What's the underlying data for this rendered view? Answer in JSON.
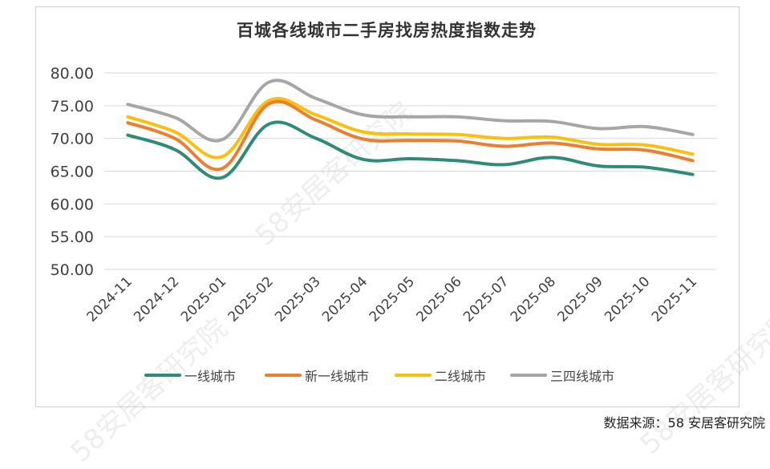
{
  "chart_data": {
    "type": "line",
    "title": "百城各线城市二手房找房热度指数走势",
    "categories": [
      "2024-11",
      "2024-12",
      "2025-01",
      "2025-02",
      "2025-03",
      "2025-04",
      "2025-05",
      "2025-06",
      "2025-07",
      "2025-08",
      "2025-09",
      "2025-10",
      "2025-11"
    ],
    "ylim": [
      50,
      80
    ],
    "yticks": [
      "80.00",
      "75.00",
      "70.00",
      "65.00",
      "60.00",
      "55.00",
      "50.00"
    ],
    "grid": true,
    "legend_position": "bottom",
    "series": [
      {
        "name": "一线城市",
        "color": "#2e8b78",
        "values": [
          70.5,
          68.3,
          64.0,
          72.2,
          70.0,
          66.8,
          66.9,
          66.6,
          66.0,
          67.1,
          65.8,
          65.6,
          64.5
        ]
      },
      {
        "name": "新一线城市",
        "color": "#ec7d31",
        "values": [
          72.4,
          70.0,
          65.4,
          75.3,
          72.8,
          69.9,
          69.7,
          69.6,
          68.8,
          69.3,
          68.4,
          68.2,
          66.6
        ]
      },
      {
        "name": "二线城市",
        "color": "#fbc00c",
        "values": [
          73.3,
          71.0,
          67.2,
          75.8,
          73.6,
          71.0,
          70.7,
          70.6,
          70.0,
          70.2,
          69.1,
          69.0,
          67.6
        ]
      },
      {
        "name": "三四线城市",
        "color": "#a6a6a6",
        "values": [
          75.2,
          73.2,
          69.8,
          78.6,
          76.1,
          73.6,
          73.3,
          73.3,
          72.7,
          72.6,
          71.5,
          71.8,
          70.6
        ]
      }
    ]
  },
  "source": "数据来源：58 安居客研究院",
  "watermark": "58安居客研究院"
}
